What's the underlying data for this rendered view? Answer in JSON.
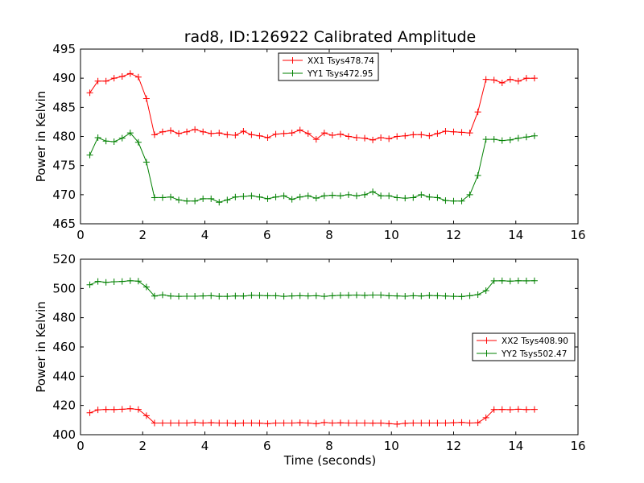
{
  "chart_data": [
    {
      "type": "line",
      "title": "rad8, ID:126922 Calibrated Amplitude",
      "xlabel": "",
      "ylabel": "Power in Kelvin",
      "xlim": [
        0,
        16
      ],
      "ylim": [
        465,
        495
      ],
      "xticks": [
        0,
        2,
        4,
        6,
        8,
        10,
        12,
        14,
        16
      ],
      "yticks": [
        465,
        470,
        475,
        480,
        485,
        490,
        495
      ],
      "grid": false,
      "legend_position": "top-center",
      "x": [
        0.3,
        0.56,
        0.82,
        1.08,
        1.34,
        1.6,
        1.86,
        2.12,
        2.38,
        2.64,
        2.9,
        3.16,
        3.42,
        3.68,
        3.94,
        4.2,
        4.46,
        4.72,
        4.98,
        5.24,
        5.5,
        5.76,
        6.02,
        6.28,
        6.54,
        6.8,
        7.06,
        7.32,
        7.58,
        7.84,
        8.1,
        8.36,
        8.62,
        8.88,
        9.14,
        9.4,
        9.66,
        9.92,
        10.18,
        10.44,
        10.7,
        10.96,
        11.22,
        11.48,
        11.74,
        12.0,
        12.26,
        12.52,
        12.78,
        13.04,
        13.3,
        13.56,
        13.82,
        14.08,
        14.34,
        14.6
      ],
      "series": [
        {
          "name": "XX1 Tsys478.74",
          "color": "#ff0000",
          "values": [
            487.5,
            489.5,
            489.5,
            490.0,
            490.3,
            490.8,
            490.2,
            486.5,
            480.3,
            480.8,
            481.0,
            480.5,
            480.8,
            481.2,
            480.8,
            480.5,
            480.6,
            480.3,
            480.2,
            480.9,
            480.3,
            480.1,
            479.8,
            480.4,
            480.5,
            480.6,
            481.1,
            480.5,
            479.5,
            480.6,
            480.2,
            480.4,
            480.0,
            479.8,
            479.7,
            479.4,
            479.8,
            479.6,
            480.0,
            480.1,
            480.3,
            480.3,
            480.1,
            480.5,
            480.9,
            480.8,
            480.7,
            480.6,
            484.2,
            489.8,
            489.7,
            489.2,
            489.8,
            489.5,
            490.0,
            490.0
          ]
        },
        {
          "name": "YY1 Tsys472.95",
          "color": "#008000",
          "values": [
            476.8,
            479.8,
            479.2,
            479.1,
            479.7,
            480.6,
            479.0,
            475.6,
            469.5,
            469.5,
            469.6,
            469.1,
            468.9,
            468.9,
            469.3,
            469.3,
            468.7,
            469.1,
            469.6,
            469.7,
            469.8,
            469.6,
            469.3,
            469.6,
            469.8,
            469.2,
            469.6,
            469.8,
            469.4,
            469.8,
            469.9,
            469.8,
            470.0,
            469.8,
            470.0,
            470.5,
            469.8,
            469.8,
            469.5,
            469.4,
            469.5,
            470.0,
            469.6,
            469.5,
            469.0,
            468.9,
            468.9,
            470.0,
            473.3,
            479.5,
            479.5,
            479.3,
            479.4,
            479.7,
            479.9,
            480.1
          ]
        }
      ]
    },
    {
      "type": "line",
      "title": "",
      "xlabel": "Time (seconds)",
      "ylabel": "Power in Kelvin",
      "xlim": [
        0,
        16
      ],
      "ylim": [
        400,
        520
      ],
      "xticks": [
        0,
        2,
        4,
        6,
        8,
        10,
        12,
        14,
        16
      ],
      "yticks": [
        400,
        420,
        440,
        460,
        480,
        500,
        520
      ],
      "grid": false,
      "legend_position": "center-right",
      "x": [
        0.3,
        0.56,
        0.82,
        1.08,
        1.34,
        1.6,
        1.86,
        2.12,
        2.38,
        2.64,
        2.9,
        3.16,
        3.42,
        3.68,
        3.94,
        4.2,
        4.46,
        4.72,
        4.98,
        5.24,
        5.5,
        5.76,
        6.02,
        6.28,
        6.54,
        6.8,
        7.06,
        7.32,
        7.58,
        7.84,
        8.1,
        8.36,
        8.62,
        8.88,
        9.14,
        9.4,
        9.66,
        9.92,
        10.18,
        10.44,
        10.7,
        10.96,
        11.22,
        11.48,
        11.74,
        12.0,
        12.26,
        12.52,
        12.78,
        13.04,
        13.3,
        13.56,
        13.82,
        14.08,
        14.34,
        14.6
      ],
      "series": [
        {
          "name": "XX2 Tsys408.90",
          "color": "#ff0000",
          "values": [
            415.0,
            417.0,
            417.3,
            417.2,
            417.4,
            417.8,
            417.3,
            413.0,
            408.0,
            408.0,
            408.0,
            408.0,
            408.0,
            408.3,
            408.0,
            408.2,
            408.0,
            408.0,
            407.8,
            408.0,
            408.0,
            407.9,
            407.6,
            408.0,
            408.0,
            408.0,
            408.2,
            408.0,
            407.6,
            408.3,
            408.0,
            408.1,
            408.0,
            408.0,
            408.0,
            407.9,
            408.0,
            407.6,
            407.2,
            407.8,
            408.0,
            408.0,
            408.0,
            408.0,
            408.0,
            408.2,
            408.4,
            408.0,
            408.2,
            411.6,
            417.2,
            417.3,
            417.1,
            417.4,
            417.2,
            417.3
          ]
        },
        {
          "name": "YY2 Tsys502.47",
          "color": "#008000",
          "values": [
            502.5,
            504.8,
            504.2,
            504.6,
            504.8,
            505.3,
            505.0,
            501.0,
            494.8,
            495.6,
            494.8,
            494.6,
            494.7,
            494.7,
            494.9,
            495.0,
            494.6,
            494.6,
            494.9,
            494.8,
            495.3,
            495.2,
            495.0,
            495.0,
            494.6,
            494.9,
            495.0,
            494.9,
            495.0,
            494.6,
            495.0,
            495.3,
            495.4,
            495.5,
            495.3,
            495.5,
            495.5,
            495.0,
            494.9,
            494.7,
            495.0,
            494.8,
            495.2,
            495.0,
            494.8,
            494.6,
            494.5,
            495.0,
            495.8,
            498.5,
            505.2,
            505.3,
            505.0,
            505.3,
            505.2,
            505.3
          ]
        }
      ]
    }
  ]
}
